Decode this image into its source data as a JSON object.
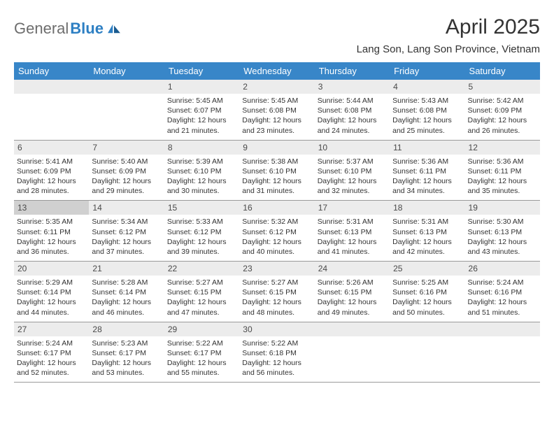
{
  "logo": {
    "general": "General",
    "blue": "Blue"
  },
  "title": "April 2025",
  "location": "Lang Son, Lang Son Province, Vietnam",
  "day_headers": [
    "Sunday",
    "Monday",
    "Tuesday",
    "Wednesday",
    "Thursday",
    "Friday",
    "Saturday"
  ],
  "colors": {
    "header_bar": "#3886c8",
    "header_text": "#ffffff",
    "daynum_bg": "#ececec",
    "daynum_bg_highlight": "#d0d0d0",
    "daynum_text": "#4a4a4a",
    "body_text": "#333333",
    "rule": "#9a9a9a",
    "logo_gray": "#6d6d6d",
    "logo_blue": "#2d7fc3"
  },
  "fonts": {
    "title_size": 30,
    "location_size": 15,
    "day_header_size": 13,
    "day_number_size": 12,
    "body_size": 10.5,
    "logo_size": 22
  },
  "weeks": [
    [
      null,
      null,
      {
        "n": "1",
        "sr": "Sunrise: 5:45 AM",
        "ss": "Sunset: 6:07 PM",
        "dl": "Daylight: 12 hours and 21 minutes."
      },
      {
        "n": "2",
        "sr": "Sunrise: 5:45 AM",
        "ss": "Sunset: 6:08 PM",
        "dl": "Daylight: 12 hours and 23 minutes."
      },
      {
        "n": "3",
        "sr": "Sunrise: 5:44 AM",
        "ss": "Sunset: 6:08 PM",
        "dl": "Daylight: 12 hours and 24 minutes."
      },
      {
        "n": "4",
        "sr": "Sunrise: 5:43 AM",
        "ss": "Sunset: 6:08 PM",
        "dl": "Daylight: 12 hours and 25 minutes."
      },
      {
        "n": "5",
        "sr": "Sunrise: 5:42 AM",
        "ss": "Sunset: 6:09 PM",
        "dl": "Daylight: 12 hours and 26 minutes."
      }
    ],
    [
      {
        "n": "6",
        "sr": "Sunrise: 5:41 AM",
        "ss": "Sunset: 6:09 PM",
        "dl": "Daylight: 12 hours and 28 minutes."
      },
      {
        "n": "7",
        "sr": "Sunrise: 5:40 AM",
        "ss": "Sunset: 6:09 PM",
        "dl": "Daylight: 12 hours and 29 minutes."
      },
      {
        "n": "8",
        "sr": "Sunrise: 5:39 AM",
        "ss": "Sunset: 6:10 PM",
        "dl": "Daylight: 12 hours and 30 minutes."
      },
      {
        "n": "9",
        "sr": "Sunrise: 5:38 AM",
        "ss": "Sunset: 6:10 PM",
        "dl": "Daylight: 12 hours and 31 minutes."
      },
      {
        "n": "10",
        "sr": "Sunrise: 5:37 AM",
        "ss": "Sunset: 6:10 PM",
        "dl": "Daylight: 12 hours and 32 minutes."
      },
      {
        "n": "11",
        "sr": "Sunrise: 5:36 AM",
        "ss": "Sunset: 6:11 PM",
        "dl": "Daylight: 12 hours and 34 minutes."
      },
      {
        "n": "12",
        "sr": "Sunrise: 5:36 AM",
        "ss": "Sunset: 6:11 PM",
        "dl": "Daylight: 12 hours and 35 minutes."
      }
    ],
    [
      {
        "n": "13",
        "sr": "Sunrise: 5:35 AM",
        "ss": "Sunset: 6:11 PM",
        "dl": "Daylight: 12 hours and 36 minutes.",
        "hl": true
      },
      {
        "n": "14",
        "sr": "Sunrise: 5:34 AM",
        "ss": "Sunset: 6:12 PM",
        "dl": "Daylight: 12 hours and 37 minutes."
      },
      {
        "n": "15",
        "sr": "Sunrise: 5:33 AM",
        "ss": "Sunset: 6:12 PM",
        "dl": "Daylight: 12 hours and 39 minutes."
      },
      {
        "n": "16",
        "sr": "Sunrise: 5:32 AM",
        "ss": "Sunset: 6:12 PM",
        "dl": "Daylight: 12 hours and 40 minutes."
      },
      {
        "n": "17",
        "sr": "Sunrise: 5:31 AM",
        "ss": "Sunset: 6:13 PM",
        "dl": "Daylight: 12 hours and 41 minutes."
      },
      {
        "n": "18",
        "sr": "Sunrise: 5:31 AM",
        "ss": "Sunset: 6:13 PM",
        "dl": "Daylight: 12 hours and 42 minutes."
      },
      {
        "n": "19",
        "sr": "Sunrise: 5:30 AM",
        "ss": "Sunset: 6:13 PM",
        "dl": "Daylight: 12 hours and 43 minutes."
      }
    ],
    [
      {
        "n": "20",
        "sr": "Sunrise: 5:29 AM",
        "ss": "Sunset: 6:14 PM",
        "dl": "Daylight: 12 hours and 44 minutes."
      },
      {
        "n": "21",
        "sr": "Sunrise: 5:28 AM",
        "ss": "Sunset: 6:14 PM",
        "dl": "Daylight: 12 hours and 46 minutes."
      },
      {
        "n": "22",
        "sr": "Sunrise: 5:27 AM",
        "ss": "Sunset: 6:15 PM",
        "dl": "Daylight: 12 hours and 47 minutes."
      },
      {
        "n": "23",
        "sr": "Sunrise: 5:27 AM",
        "ss": "Sunset: 6:15 PM",
        "dl": "Daylight: 12 hours and 48 minutes."
      },
      {
        "n": "24",
        "sr": "Sunrise: 5:26 AM",
        "ss": "Sunset: 6:15 PM",
        "dl": "Daylight: 12 hours and 49 minutes."
      },
      {
        "n": "25",
        "sr": "Sunrise: 5:25 AM",
        "ss": "Sunset: 6:16 PM",
        "dl": "Daylight: 12 hours and 50 minutes."
      },
      {
        "n": "26",
        "sr": "Sunrise: 5:24 AM",
        "ss": "Sunset: 6:16 PM",
        "dl": "Daylight: 12 hours and 51 minutes."
      }
    ],
    [
      {
        "n": "27",
        "sr": "Sunrise: 5:24 AM",
        "ss": "Sunset: 6:17 PM",
        "dl": "Daylight: 12 hours and 52 minutes."
      },
      {
        "n": "28",
        "sr": "Sunrise: 5:23 AM",
        "ss": "Sunset: 6:17 PM",
        "dl": "Daylight: 12 hours and 53 minutes."
      },
      {
        "n": "29",
        "sr": "Sunrise: 5:22 AM",
        "ss": "Sunset: 6:17 PM",
        "dl": "Daylight: 12 hours and 55 minutes."
      },
      {
        "n": "30",
        "sr": "Sunrise: 5:22 AM",
        "ss": "Sunset: 6:18 PM",
        "dl": "Daylight: 12 hours and 56 minutes."
      },
      null,
      null,
      null
    ]
  ]
}
